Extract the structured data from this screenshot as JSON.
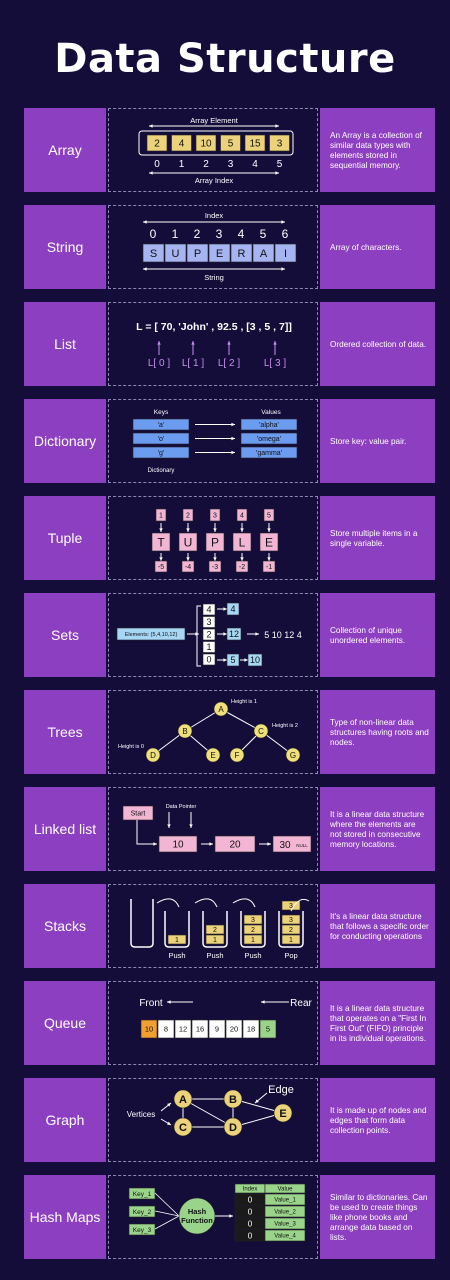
{
  "title": "Data Structure",
  "rows": [
    {
      "label": "Array",
      "desc": "An Array is a collection of similar data types with elements stored in sequential memory.",
      "array": {
        "top_label": "Array Element",
        "values": [
          "2",
          "4",
          "10",
          "5",
          "15",
          "3"
        ],
        "indexes": [
          "0",
          "1",
          "2",
          "3",
          "4",
          "5"
        ],
        "bottom_label": "Array Index"
      }
    },
    {
      "label": "String",
      "desc": "Array of characters.",
      "string": {
        "top_label": "Index",
        "indexes": [
          "0",
          "1",
          "2",
          "3",
          "4",
          "5",
          "6"
        ],
        "chars": [
          "S",
          "U",
          "P",
          "E",
          "R",
          "A",
          "I"
        ],
        "bottom_label": "String"
      }
    },
    {
      "label": "List",
      "desc": "Ordered collection of data.",
      "list": {
        "expression": "L = [ 70, 'John' , 92.5 , [3 , 5 , 7]]",
        "indexes": [
          "L[ 0 ]",
          "L[ 1 ]",
          "L[ 2 ]",
          "L[ 3 ]"
        ]
      }
    },
    {
      "label": "Dictionary",
      "desc": "Store key: value pair.",
      "dict": {
        "keys_label": "Keys",
        "values_label": "Values",
        "keys": [
          "'a'",
          "'o'",
          "'g'"
        ],
        "values": [
          "'alpha'",
          "'omega'",
          "'gamma'"
        ],
        "bottom_label": "Dictionary"
      }
    },
    {
      "label": "Tuple",
      "desc": "Store multiple items in a single variable.",
      "tuple": {
        "pos": [
          "1",
          "2",
          "3",
          "4",
          "5"
        ],
        "chars": [
          "T",
          "U",
          "P",
          "L",
          "E"
        ],
        "neg": [
          "-5",
          "-4",
          "-3",
          "-2",
          "-1"
        ]
      }
    },
    {
      "label": "Sets",
      "desc": "Collection of unique unordered elements.",
      "sets": {
        "elements": "Elements: {5,4,10,12}",
        "stack": [
          "4",
          "3",
          "2",
          "1",
          "0"
        ],
        "out": [
          "4",
          "12",
          "5",
          "10"
        ],
        "result": "5 10 12 4"
      }
    },
    {
      "label": "Trees",
      "desc": "Type of non-linear data structures having roots and nodes.",
      "trees": {
        "nodes": [
          "A",
          "B",
          "C",
          "D",
          "E",
          "F",
          "G"
        ],
        "h0": "Height is 0",
        "h1": "Height is 1",
        "h2": "Height is 2"
      }
    },
    {
      "label": "Linked list",
      "desc": "It is a linear data structure where the elements are not stored in consecutive memory locations.",
      "linked": {
        "start": "Start",
        "pointer": "Data Pointer",
        "nodes": [
          "10",
          "20",
          "30"
        ],
        "null": "NULL"
      }
    },
    {
      "label": "Stacks",
      "desc": "It's a linear data structure that follows a specific order for conducting operations",
      "stacks": {
        "ops": [
          "Push",
          "Push",
          "Push",
          "Pop"
        ]
      }
    },
    {
      "label": "Queue",
      "desc": "It is a linear data structure that operates on a \"First In First Out\" (FIFO) principle in its individual operations.",
      "queue": {
        "front": "Front",
        "rear": "Rear",
        "values": [
          "10",
          "8",
          "12",
          "16",
          "9",
          "20",
          "18",
          "5"
        ]
      }
    },
    {
      "label": "Graph",
      "desc": "It is made up of nodes and edges that form data collection points.",
      "graph": {
        "vertices": "Vertices",
        "edge": "Edge",
        "nodes": [
          "A",
          "B",
          "C",
          "D",
          "E"
        ]
      }
    },
    {
      "label": "Hash Maps",
      "desc": "Similar to dictionaries. Can be used to create things like phone books and arrange data based on lists.",
      "hash": {
        "keys": [
          "Key_1",
          "Key_2",
          "Key_3"
        ],
        "function": "Hash Function",
        "index_label": "Index",
        "value_label": "Value",
        "indexes": [
          "0",
          "0",
          "0",
          "0"
        ],
        "values": [
          "Value_1",
          "Value_2",
          "Value_3",
          "Value_4"
        ]
      }
    }
  ],
  "colors": {
    "bg": "#140d3a",
    "purple": "#8c3fc0",
    "yellow": "#ecd27a",
    "blue": "#a6b5f2",
    "pink": "#f2b6d4",
    "green": "#9ad48a"
  }
}
